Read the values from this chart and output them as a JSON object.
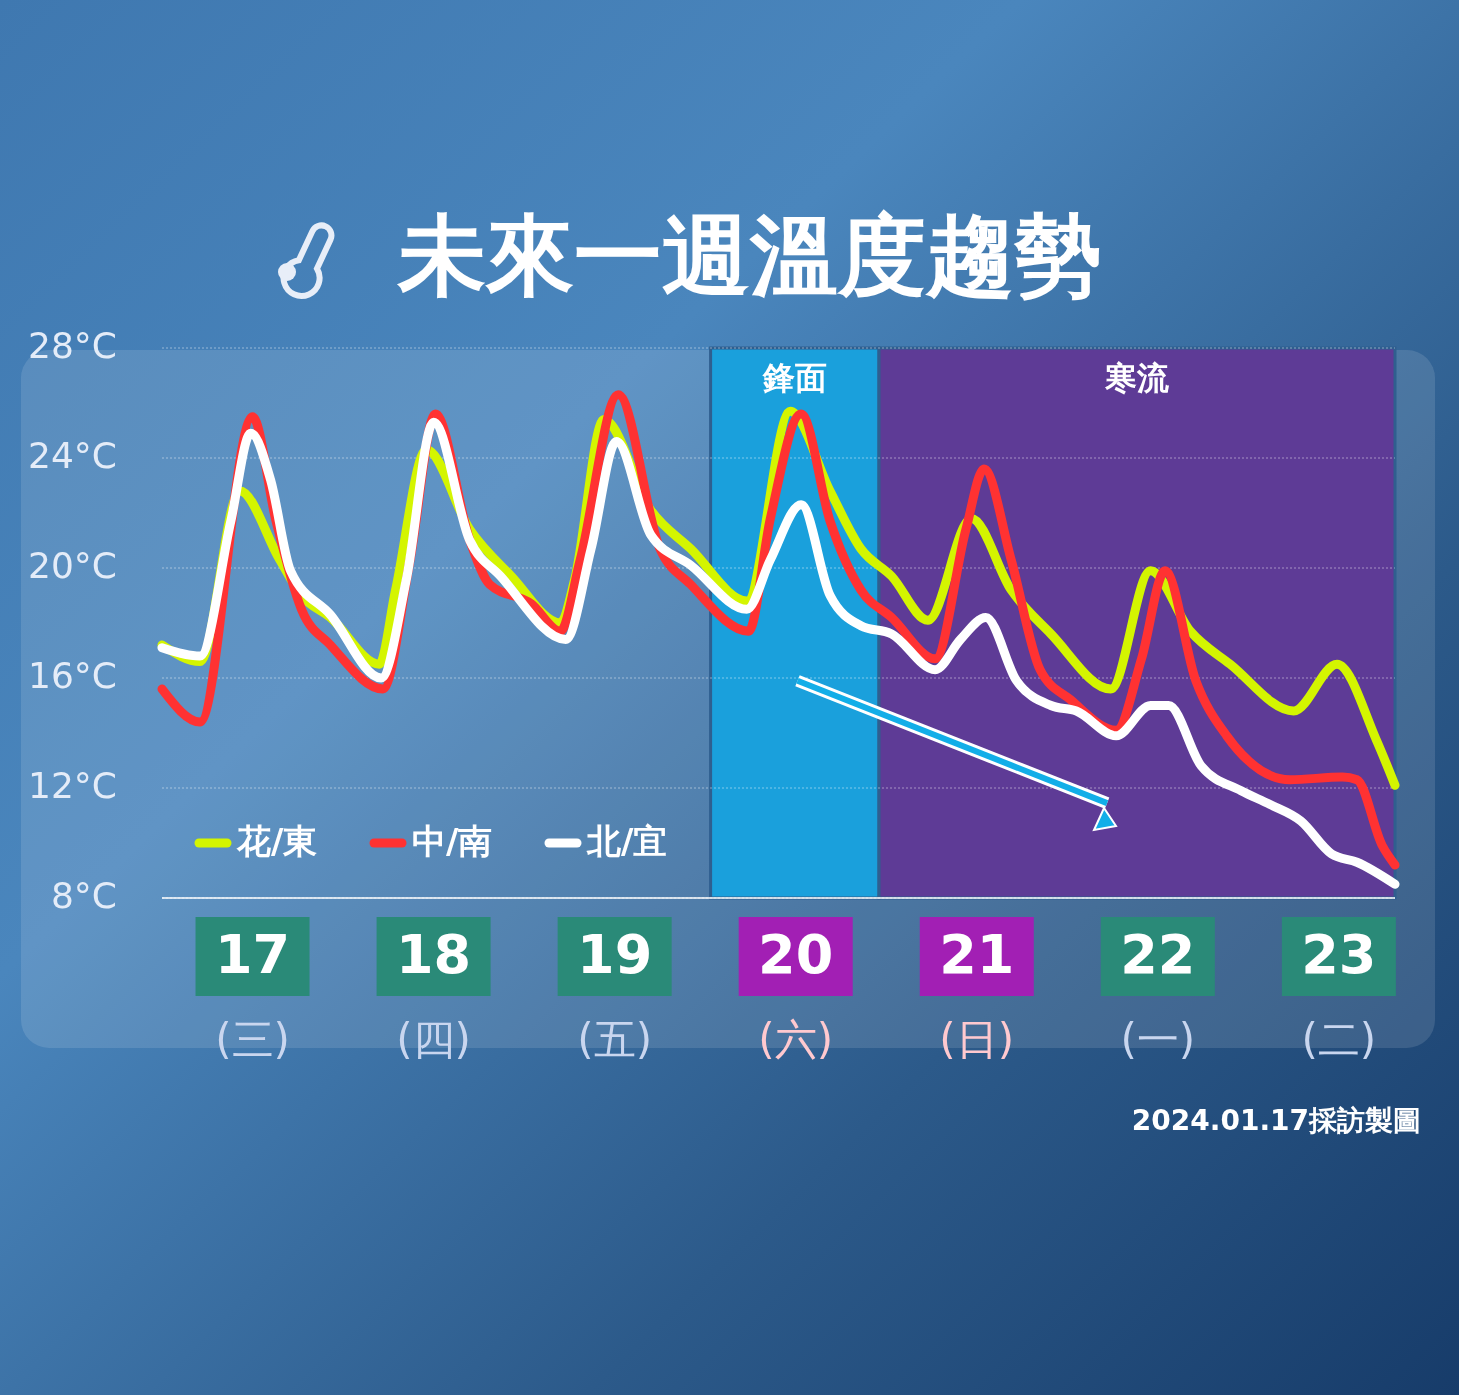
{
  "chart_data": {
    "type": "line",
    "title": "未來一週溫度趨勢",
    "annotations": [
      "2024.01.17採訪製圖"
    ],
    "xlim": [
      16.5,
      23.31
    ],
    "xticks": [
      {
        "value": 17,
        "label": "17\n(三)"
      },
      {
        "value": 18,
        "label": "18\n(四)"
      },
      {
        "value": 19,
        "label": "19\n(五)"
      },
      {
        "value": 20,
        "label": "20\n(六)"
      },
      {
        "value": 21,
        "label": "21\n(日)"
      },
      {
        "value": 22,
        "label": "22\n(一)"
      },
      {
        "value": 23,
        "label": "23\n(二)"
      }
    ],
    "ylim": [
      8,
      28
    ],
    "yticks": [
      {
        "value": 8,
        "label": "8°C"
      },
      {
        "value": 12,
        "label": "12°C"
      },
      {
        "value": 16,
        "label": "16°C"
      },
      {
        "value": 20,
        "label": "20°C"
      },
      {
        "value": 24,
        "label": "24°C"
      },
      {
        "value": 28,
        "label": "28°C"
      }
    ],
    "grid": "y",
    "legend": "bottom left",
    "marker": "none",
    "line_style": "solid",
    "bands": [
      {
        "axis": "x",
        "from": 19.53,
        "to": 20.46,
        "label": "鋒面",
        "color": "#1aa0dc"
      },
      {
        "axis": "x",
        "from": 20.46,
        "to": 23.31,
        "label": "寒流",
        "color": "#5e3b96"
      }
    ],
    "series": [
      {
        "name": "花/東",
        "color": "#d4f500",
        "x": [
          16.5,
          16.71,
          16.93,
          17.15,
          17.27,
          17.43,
          17.7,
          17.79,
          17.96,
          18.2,
          18.43,
          18.7,
          18.78,
          18.94,
          19.2,
          19.42,
          19.73,
          19.97,
          20.19,
          20.36,
          20.53,
          20.73,
          20.97,
          21.19,
          21.41,
          21.74,
          21.96,
          22.18,
          22.4,
          22.75,
          22.99,
          23.21,
          23.31
        ],
        "values": [
          17.2,
          16.6,
          22.8,
          20.3,
          19.0,
          18.2,
          16.5,
          19.2,
          24.3,
          21.4,
          19.7,
          18.0,
          19.6,
          25.4,
          22.1,
          20.7,
          18.8,
          25.7,
          22.8,
          20.7,
          19.7,
          18.1,
          21.8,
          19.2,
          17.6,
          15.6,
          19.9,
          17.7,
          16.5,
          14.8,
          16.5,
          13.7,
          12.1
        ]
      },
      {
        "name": "中/南",
        "color": "#ff3232",
        "x": [
          16.5,
          16.71,
          17.0,
          17.13,
          17.27,
          17.43,
          17.72,
          17.87,
          18.01,
          18.2,
          18.31,
          18.54,
          18.7,
          18.81,
          19.02,
          19.25,
          19.42,
          19.74,
          19.86,
          20.03,
          20.19,
          20.36,
          20.53,
          20.77,
          20.94,
          21.04,
          21.19,
          21.35,
          21.52,
          21.77,
          21.91,
          22.04,
          22.21,
          22.38,
          22.73,
          23.02,
          23.1,
          23.24,
          23.31
        ],
        "values": [
          15.6,
          14.4,
          25.5,
          21.7,
          18.5,
          17.2,
          15.6,
          20.3,
          25.6,
          21.0,
          19.4,
          18.7,
          17.7,
          20.3,
          26.3,
          20.7,
          19.4,
          17.7,
          21.8,
          25.6,
          21.7,
          19.2,
          18.2,
          16.7,
          21.4,
          23.6,
          20.3,
          16.3,
          15.2,
          14.1,
          16.7,
          19.9,
          15.9,
          13.9,
          12.3,
          12.4,
          12.3,
          9.9,
          9.2
        ]
      },
      {
        "name": "北/宜",
        "color": "#ffffff",
        "x": [
          16.5,
          16.71,
          16.88,
          16.99,
          17.1,
          17.21,
          17.43,
          17.71,
          17.85,
          18.0,
          18.2,
          18.37,
          18.73,
          18.87,
          19.01,
          19.2,
          19.42,
          19.73,
          19.86,
          20.03,
          20.19,
          20.36,
          20.53,
          20.77,
          20.91,
          21.05,
          21.22,
          21.41,
          21.55,
          21.77,
          21.96,
          22.06,
          22.24,
          22.46,
          22.62,
          22.79,
          22.96,
          23.1,
          23.31
        ],
        "values": [
          17.1,
          16.8,
          21.7,
          24.9,
          23.2,
          19.9,
          18.3,
          16.0,
          19.6,
          25.3,
          21.0,
          19.7,
          17.4,
          20.7,
          24.6,
          21.2,
          20.1,
          18.5,
          20.3,
          22.3,
          19.0,
          17.9,
          17.6,
          16.3,
          17.4,
          18.2,
          15.9,
          15.0,
          14.8,
          13.9,
          15.0,
          15.0,
          12.8,
          11.9,
          11.4,
          10.8,
          9.6,
          9.3,
          8.5
        ]
      }
    ]
  }
}
